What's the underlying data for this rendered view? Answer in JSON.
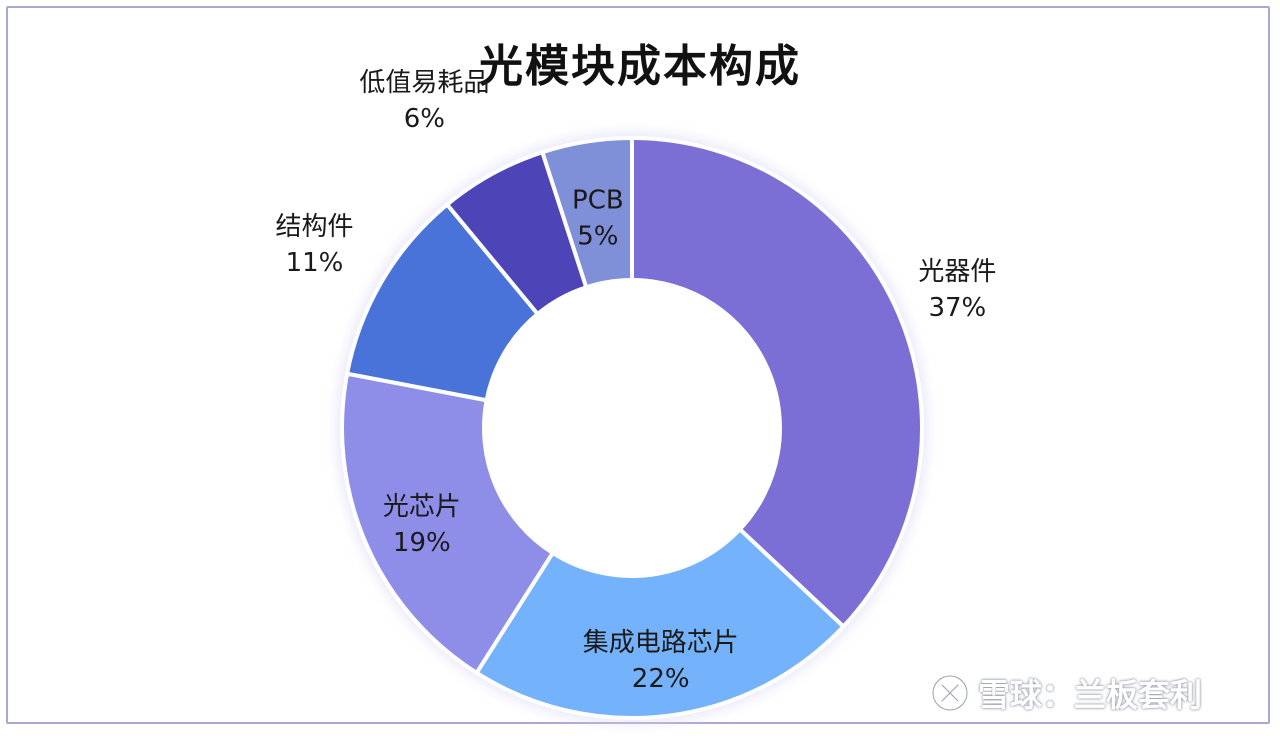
{
  "chart_data": {
    "type": "pie",
    "style": "donut",
    "title": "光模块成本构成",
    "slices": [
      {
        "label": "光器件",
        "value": 37,
        "value_label": "37%",
        "color": "#7b6fd6"
      },
      {
        "label": "集成电路芯片",
        "value": 22,
        "value_label": "22%",
        "color": "#74b3fb"
      },
      {
        "label": "光芯片",
        "value": 19,
        "value_label": "19%",
        "color": "#8e8ee9"
      },
      {
        "label": "结构件",
        "value": 11,
        "value_label": "11%",
        "color": "#4a73d9"
      },
      {
        "label": "低值易耗品",
        "value": 6,
        "value_label": "6%",
        "color": "#4d44b8"
      },
      {
        "label": "PCB",
        "value": 5,
        "value_label": "5%",
        "color": "#7f8fd8"
      }
    ],
    "legend": "none"
  },
  "watermark": {
    "text": "雪球：兰板套利",
    "icon": "snowball-logo-icon"
  }
}
